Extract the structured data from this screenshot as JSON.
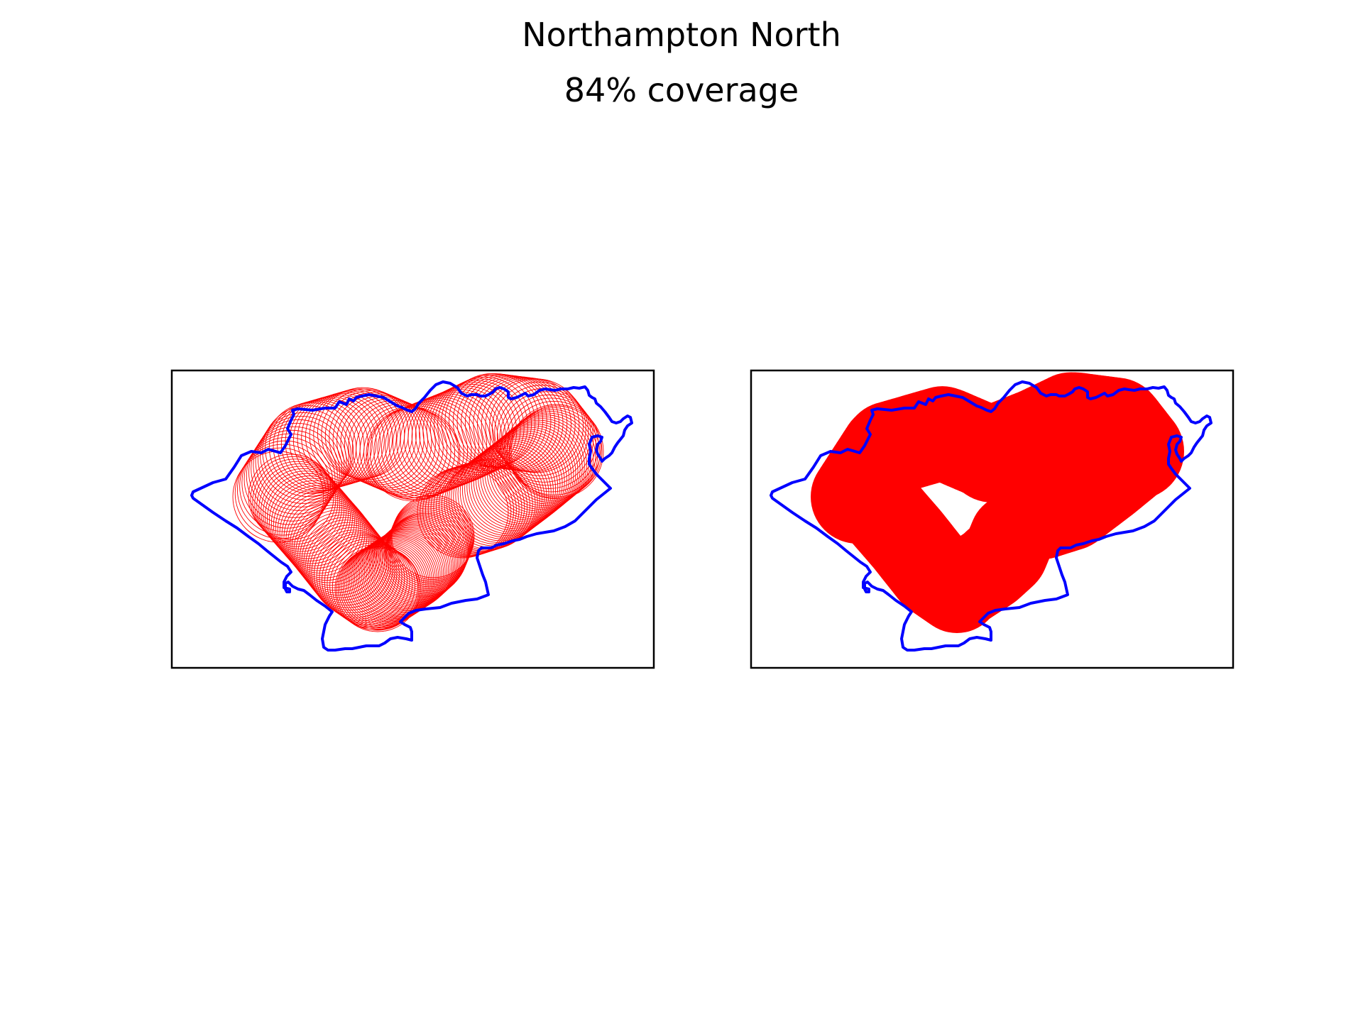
{
  "figure": {
    "title": "Northampton North",
    "subtitle": "84% coverage"
  },
  "colors": {
    "boundary": "#0000ff",
    "coverage": "#ff0000",
    "frame": "#000000",
    "background": "#ffffff"
  },
  "panels": [
    {
      "name": "circles-outline",
      "coverage_style": "outlined circles"
    },
    {
      "name": "circles-filled",
      "coverage_style": "filled union"
    }
  ]
}
